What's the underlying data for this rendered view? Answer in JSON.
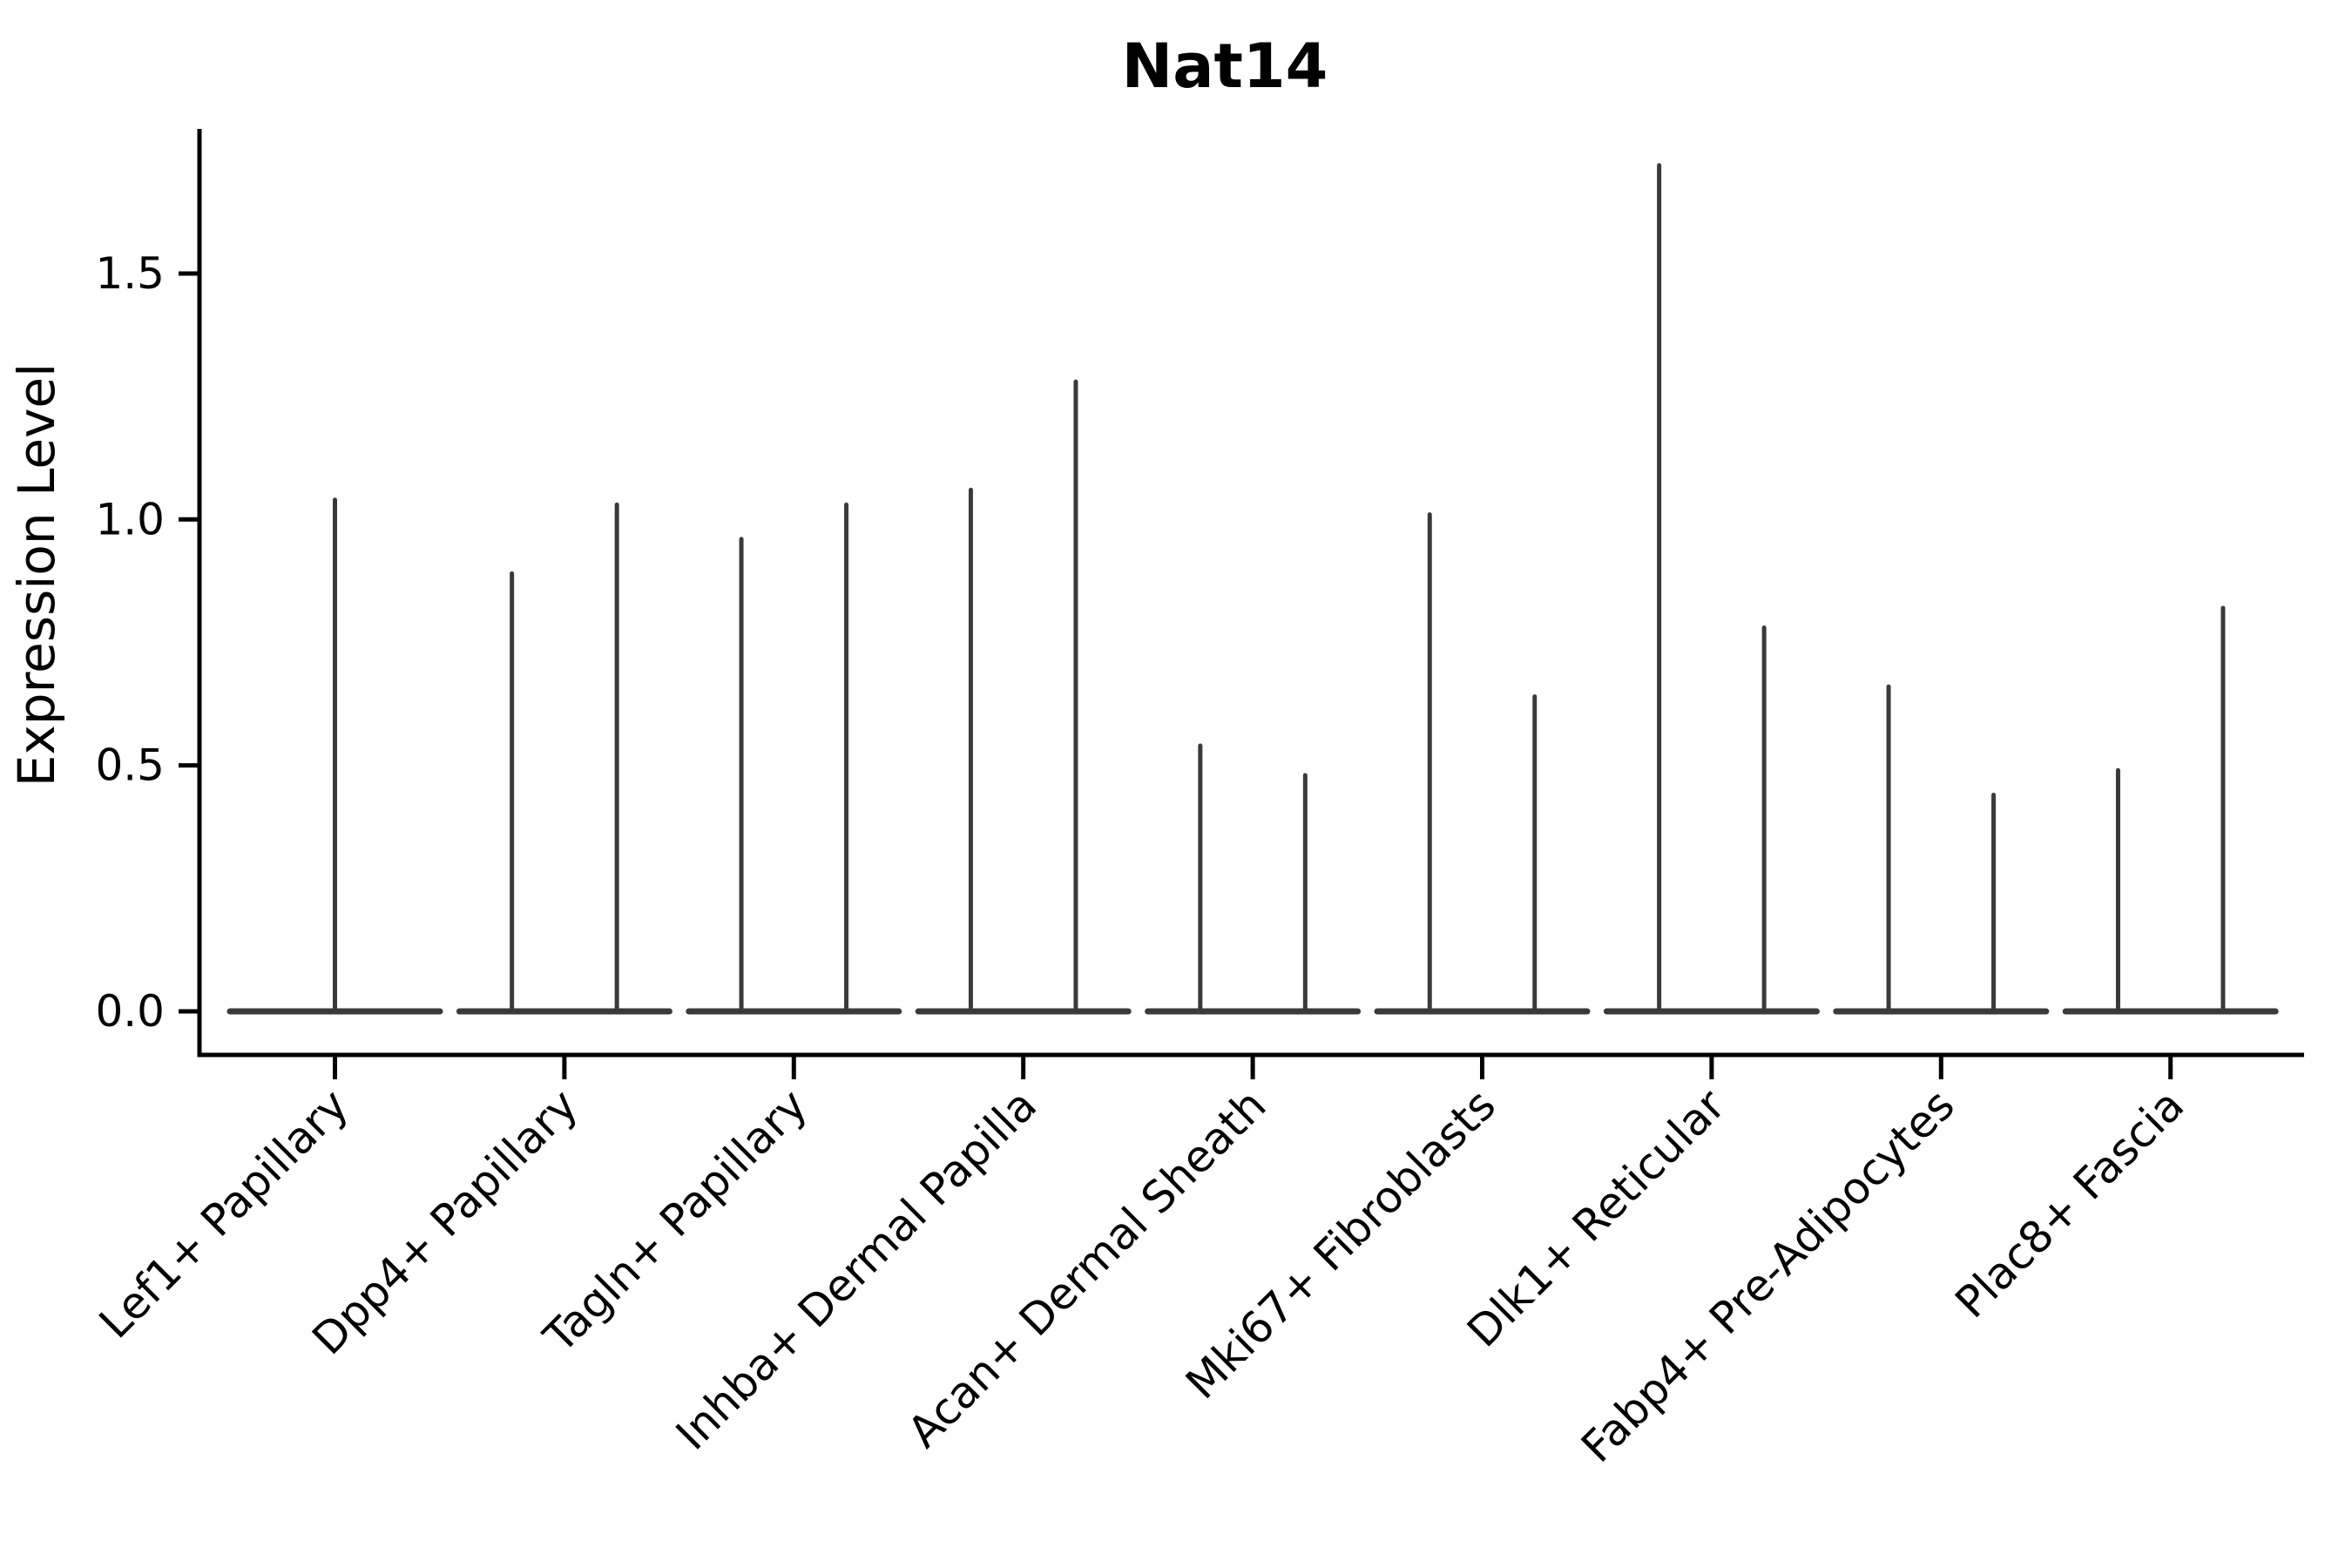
{
  "chart_data": {
    "type": "violin",
    "title": "Nat14",
    "ylabel": "Expression Level",
    "xlabel": "",
    "ylim": [
      -0.09,
      1.79
    ],
    "yticks": [
      0.0,
      0.5,
      1.0,
      1.5
    ],
    "ytick_labels": [
      "0.0",
      "0.5",
      "1.0",
      "1.5"
    ],
    "grid": false,
    "legend": "none",
    "style_note": "Seurat-style single-cell violin plot; expression mass concentrated at 0 giving flat horizontal bodies at baseline with thin vertical tails rising to each violin's maximum. First category has one violin; all other categories have two violins.",
    "categories": [
      "Lef1+ Papillary",
      "Dpp4+ Papillary",
      "Tagln+ Papillary",
      "Inhba+ Dermal Papilla",
      "Acan+ Dermal Sheath",
      "Mki67+ Fibroblasts",
      "Dlk1+ Reticular",
      "Fabp4+ Pre-Adipocytes",
      "Plac8+ Fascia"
    ],
    "groups": [
      {
        "category": "Lef1+ Papillary",
        "baseline_value": 0,
        "violin_maxima": [
          1.04
        ]
      },
      {
        "category": "Dpp4+ Papillary",
        "baseline_value": 0,
        "violin_maxima": [
          0.89,
          1.03
        ]
      },
      {
        "category": "Tagln+ Papillary",
        "baseline_value": 0,
        "violin_maxima": [
          0.96,
          1.03
        ]
      },
      {
        "category": "Inhba+ Dermal Papilla",
        "baseline_value": 0,
        "violin_maxima": [
          1.06,
          1.28
        ]
      },
      {
        "category": "Acan+ Dermal Sheath",
        "baseline_value": 0,
        "violin_maxima": [
          0.54,
          0.48
        ]
      },
      {
        "category": "Mki67+ Fibroblasts",
        "baseline_value": 0,
        "violin_maxima": [
          1.01,
          0.64
        ]
      },
      {
        "category": "Dlk1+ Reticular",
        "baseline_value": 0,
        "violin_maxima": [
          1.72,
          0.78
        ]
      },
      {
        "category": "Fabp4+ Pre-Adipocytes",
        "baseline_value": 0,
        "violin_maxima": [
          0.66,
          0.44
        ]
      },
      {
        "category": "Plac8+ Fascia",
        "baseline_value": 0,
        "violin_maxima": [
          0.49,
          0.82
        ]
      }
    ],
    "colors": {
      "violin_stroke": "#3a3a3a",
      "axis": "#000000",
      "text": "#000000",
      "background": "#ffffff"
    }
  }
}
